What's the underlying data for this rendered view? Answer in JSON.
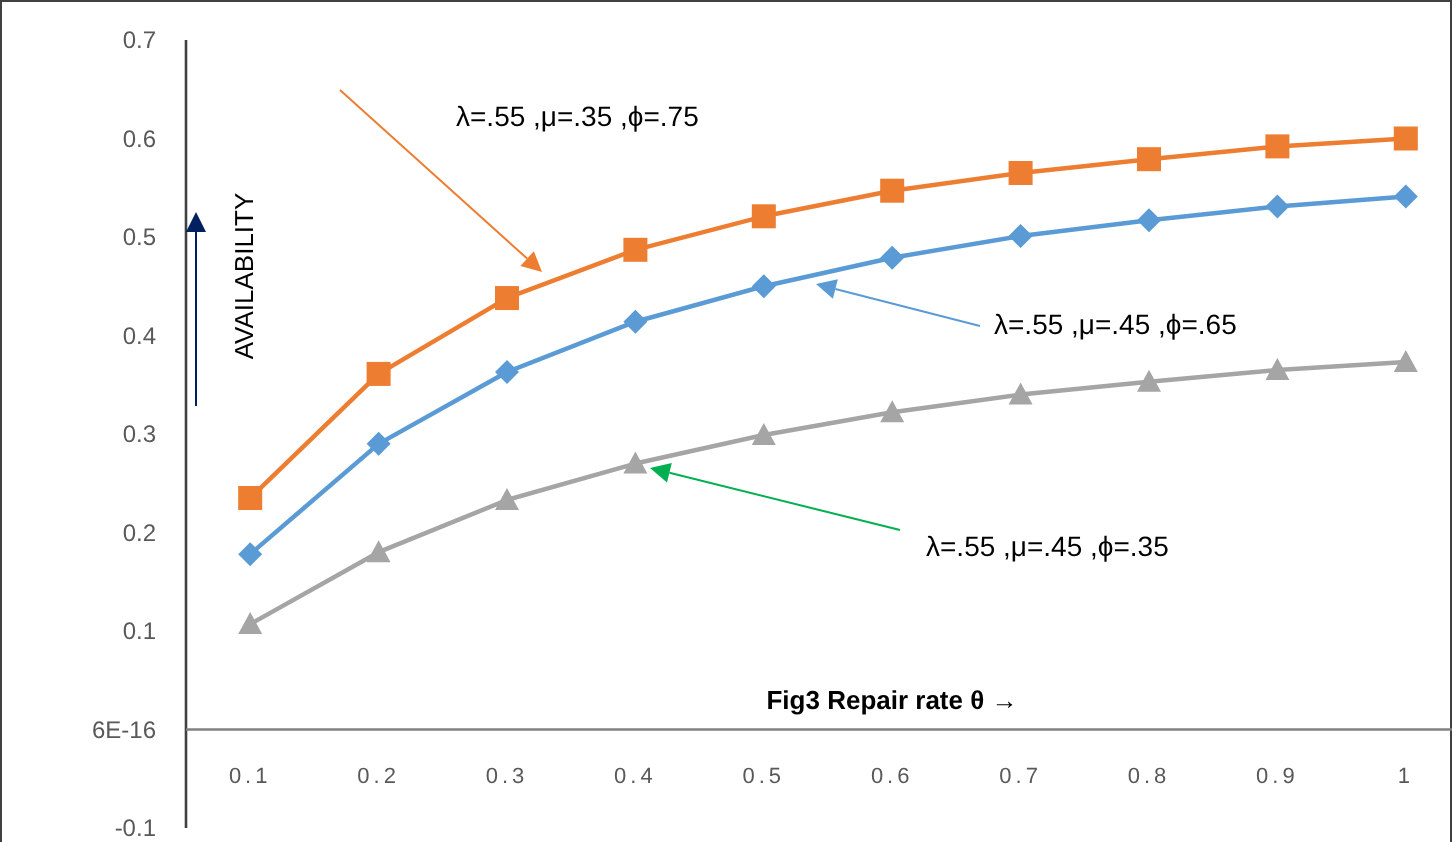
{
  "chart_data": {
    "type": "line",
    "xlabel": "Fig3 Repair rate θ →",
    "ylabel": "AVAILABILITY",
    "categories": [
      "0.1",
      "0.2",
      "0.3",
      "0.4",
      "0.5",
      "0.6",
      "0.7",
      "0.8",
      "0.9",
      "1"
    ],
    "series": [
      {
        "color": "#ed7d31",
        "marker": "square",
        "values": [
          0.235,
          0.361,
          0.438,
          0.487,
          0.521,
          0.547,
          0.565,
          0.579,
          0.592,
          0.6
        ]
      },
      {
        "color": "#5b9bd5",
        "marker": "diamond",
        "values": [
          0.178,
          0.29,
          0.363,
          0.414,
          0.45,
          0.479,
          0.501,
          0.517,
          0.531,
          0.541
        ]
      },
      {
        "color": "#a5a5a5",
        "marker": "triangle",
        "values": [
          0.107,
          0.18,
          0.233,
          0.27,
          0.299,
          0.322,
          0.34,
          0.353,
          0.365,
          0.373
        ]
      }
    ],
    "ylim": [
      -0.1,
      0.7
    ],
    "yticks": [
      -0.1,
      {
        "value": 0,
        "label": "6E-16"
      },
      0.1,
      0.2,
      0.3,
      0.4,
      0.5,
      0.6,
      0.7
    ],
    "annotations": [
      "λ=.55 ,μ=.35 ,ϕ=.75",
      "λ=.55 ,μ=.45 ,ϕ=.65",
      "λ=.55 ,μ=.45 ,ϕ=.35"
    ]
  }
}
